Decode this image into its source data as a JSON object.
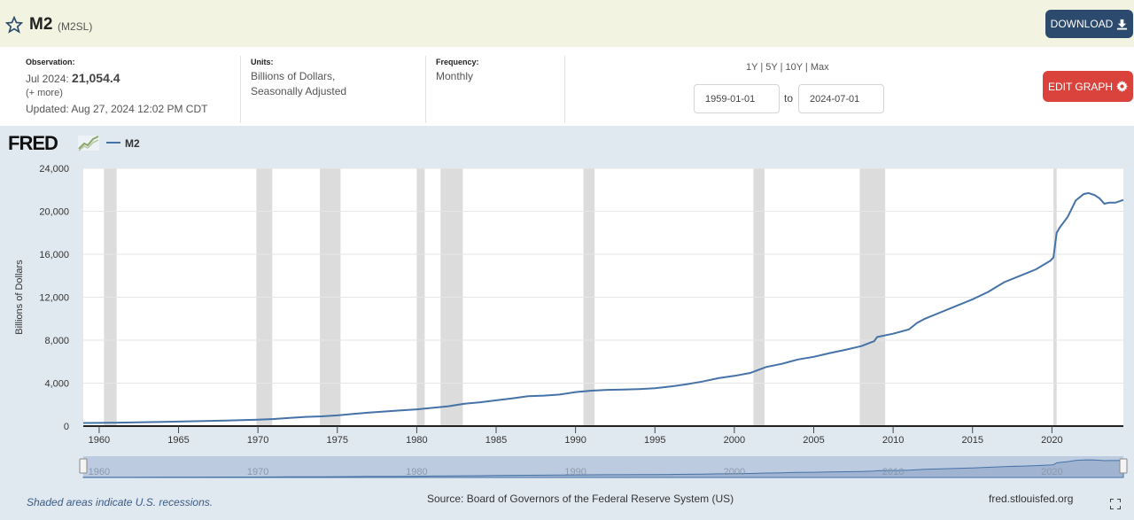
{
  "header": {
    "title": "M2",
    "series_code": "(M2SL)",
    "download_label": "DOWNLOAD",
    "colors": {
      "bar": "#f2f3e0",
      "download_button": "#2c4a6e"
    }
  },
  "meta": {
    "observation_label": "Observation:",
    "observation_date": "Jul 2024:",
    "observation_value": "21,054.4",
    "more_link": "(+ more)",
    "updated": "Updated: Aug 27, 2024 12:02 PM CDT",
    "units_label": "Units:",
    "units_line1": "Billions of Dollars,",
    "units_line2": "Seasonally Adjusted",
    "frequency_label": "Frequency:",
    "frequency_value": "Monthly"
  },
  "range": {
    "options": [
      "1Y",
      "5Y",
      "10Y",
      "Max"
    ],
    "separator": " | ",
    "start": "1959-01-01",
    "to_label": "to",
    "end": "2024-07-01"
  },
  "edit_graph_label": "EDIT GRAPH",
  "edit_graph_color": "#d9433b",
  "logo": "FRED",
  "icons": [
    "star-icon",
    "download-icon",
    "gear-icon",
    "fred-sparkline-icon",
    "fullscreen-icon"
  ],
  "footer": {
    "recession_note": "Shaded areas indicate U.S. recessions.",
    "source": "Source: Board of Governors of the Federal Reserve System (US)",
    "site": "fred.stlouisfed.org"
  },
  "chart_data": {
    "type": "line",
    "ylabel": "Billions of Dollars",
    "xlim": [
      1959.0,
      2024.5
    ],
    "ylim": [
      0,
      24000
    ],
    "y_ticks": [
      0,
      4000,
      8000,
      12000,
      16000,
      20000,
      24000
    ],
    "y_tick_labels": [
      "0",
      "4,000",
      "8,000",
      "12,000",
      "16,000",
      "20,000",
      "24,000"
    ],
    "x_ticks": [
      1960,
      1965,
      1970,
      1975,
      1980,
      1985,
      1990,
      1995,
      2000,
      2005,
      2010,
      2015,
      2020
    ],
    "navigator_ticks": [
      1960,
      1970,
      1980,
      1990,
      2000,
      2010,
      2020
    ],
    "grid": true,
    "legend": "top-left",
    "line_color": "#4572a7",
    "recession_color": "#dcdcdc",
    "recessions": [
      [
        1960.3,
        1961.1
      ],
      [
        1969.9,
        1970.9
      ],
      [
        1973.9,
        1975.2
      ],
      [
        1980.0,
        1980.5
      ],
      [
        1981.5,
        1982.9
      ],
      [
        1990.5,
        1991.2
      ],
      [
        2001.2,
        2001.9
      ],
      [
        2007.9,
        2009.5
      ],
      [
        2020.1,
        2020.3
      ]
    ],
    "series": [
      {
        "name": "M2",
        "x": [
          1959.0,
          1960,
          1962,
          1964,
          1966,
          1968,
          1970,
          1971,
          1972,
          1973,
          1974,
          1975,
          1976,
          1977,
          1978,
          1979,
          1980,
          1981,
          1982,
          1983,
          1984,
          1985,
          1986,
          1987,
          1988,
          1989,
          1990,
          1991,
          1992,
          1993,
          1994,
          1995,
          1996,
          1997,
          1998,
          1999,
          2000,
          2001,
          2002,
          2003,
          2004,
          2005,
          2006,
          2007,
          2008,
          2008.8,
          2009,
          2010,
          2011,
          2011.5,
          2012,
          2013,
          2014,
          2015,
          2016,
          2017,
          2018,
          2019,
          2019.9,
          2020.1,
          2020.3,
          2020.5,
          2021.0,
          2021.5,
          2022.0,
          2022.3,
          2022.7,
          2023.0,
          2023.3,
          2023.6,
          2024.0,
          2024.5
        ],
        "y": [
          286,
          300,
          340,
          390,
          450,
          520,
          590,
          660,
          770,
          860,
          910,
          1000,
          1130,
          1260,
          1360,
          1460,
          1560,
          1700,
          1850,
          2080,
          2220,
          2400,
          2580,
          2780,
          2840,
          2940,
          3170,
          3300,
          3370,
          3400,
          3450,
          3520,
          3690,
          3900,
          4150,
          4460,
          4680,
          4950,
          5500,
          5800,
          6200,
          6450,
          6800,
          7100,
          7450,
          7900,
          8300,
          8600,
          9000,
          9600,
          10000,
          10600,
          11200,
          11800,
          12500,
          13400,
          14000,
          14600,
          15400,
          15700,
          18000,
          18500,
          19500,
          21000,
          21600,
          21700,
          21500,
          21200,
          20700,
          20800,
          20800,
          21054
        ]
      }
    ]
  }
}
